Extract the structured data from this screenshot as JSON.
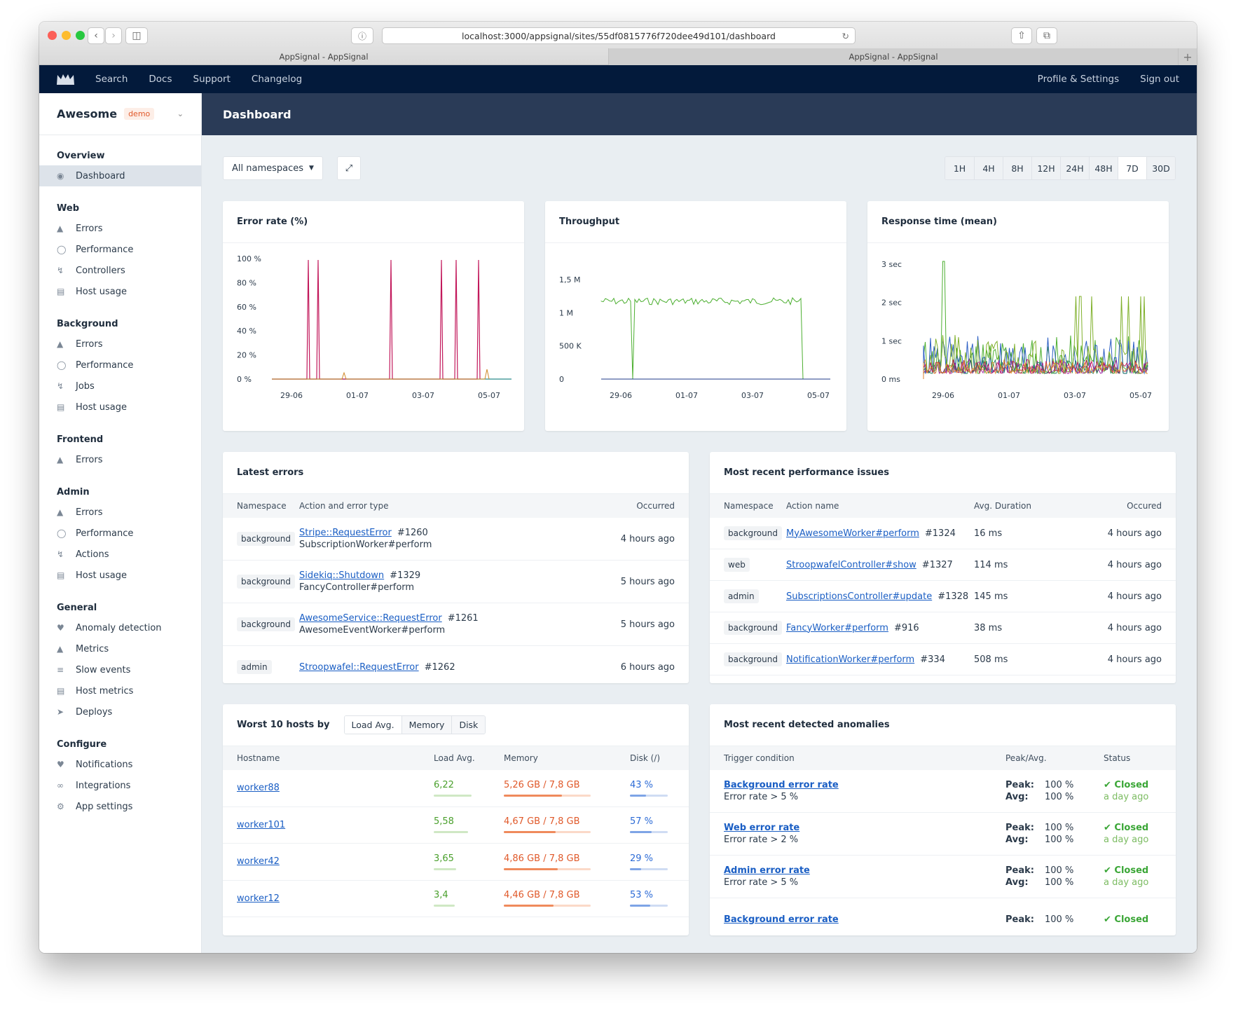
{
  "browser": {
    "url": "localhost:3000/appsignal/sites/55df0815776f720dee49d101/dashboard",
    "tabs": [
      "AppSignal - AppSignal",
      "AppSignal - AppSignal"
    ]
  },
  "topnav": {
    "items": [
      "Search",
      "Docs",
      "Support",
      "Changelog"
    ],
    "right": [
      "Profile & Settings",
      "Sign out"
    ]
  },
  "app": {
    "name": "Awesome",
    "env": "demo"
  },
  "sidebar": {
    "groups": [
      {
        "title": "Overview",
        "items": [
          {
            "label": "Dashboard",
            "icon": "dashboard-icon"
          }
        ]
      },
      {
        "title": "Web",
        "items": [
          {
            "label": "Errors",
            "icon": "warning-icon"
          },
          {
            "label": "Performance",
            "icon": "clock-icon"
          },
          {
            "label": "Controllers",
            "icon": "bolt-icon"
          },
          {
            "label": "Host usage",
            "icon": "server-icon"
          }
        ]
      },
      {
        "title": "Background",
        "items": [
          {
            "label": "Errors",
            "icon": "warning-icon"
          },
          {
            "label": "Performance",
            "icon": "clock-icon"
          },
          {
            "label": "Jobs",
            "icon": "bolt-icon"
          },
          {
            "label": "Host usage",
            "icon": "server-icon"
          }
        ]
      },
      {
        "title": "Frontend",
        "items": [
          {
            "label": "Errors",
            "icon": "warning-icon"
          }
        ]
      },
      {
        "title": "Admin",
        "items": [
          {
            "label": "Errors",
            "icon": "warning-icon"
          },
          {
            "label": "Performance",
            "icon": "clock-icon"
          },
          {
            "label": "Actions",
            "icon": "bolt-icon"
          },
          {
            "label": "Host usage",
            "icon": "server-icon"
          }
        ]
      },
      {
        "title": "General",
        "items": [
          {
            "label": "Anomaly detection",
            "icon": "bell-icon"
          },
          {
            "label": "Metrics",
            "icon": "area-chart-icon"
          },
          {
            "label": "Slow events",
            "icon": "list-icon"
          },
          {
            "label": "Host metrics",
            "icon": "server-icon"
          },
          {
            "label": "Deploys",
            "icon": "rocket-icon"
          }
        ]
      },
      {
        "title": "Configure",
        "items": [
          {
            "label": "Notifications",
            "icon": "bell-icon"
          },
          {
            "label": "Integrations",
            "icon": "link-icon"
          },
          {
            "label": "App settings",
            "icon": "gear-icon"
          }
        ]
      }
    ]
  },
  "page": {
    "title": "Dashboard"
  },
  "toolbar": {
    "namespace": "All namespaces",
    "ranges": [
      "1H",
      "4H",
      "8H",
      "12H",
      "24H",
      "48H",
      "7D",
      "30D"
    ],
    "selected_range": "7D"
  },
  "charts": [
    {
      "title": "Error rate (%)",
      "yticks": [
        "100 %",
        "80 %",
        "60 %",
        "40 %",
        "20 %",
        "0 %"
      ],
      "xticks": [
        "29-06",
        "01-07",
        "03-07",
        "05-07"
      ]
    },
    {
      "title": "Throughput",
      "yticks": [
        "1,5 M",
        "1 M",
        "500 K",
        "0"
      ],
      "xticks": [
        "29-06",
        "01-07",
        "03-07",
        "05-07"
      ]
    },
    {
      "title": "Response time (mean)",
      "yticks": [
        "3 sec",
        "2 sec",
        "1 sec",
        "0 ms"
      ],
      "xticks": [
        "29-06",
        "01-07",
        "03-07",
        "05-07"
      ]
    }
  ],
  "latest_errors": {
    "title": "Latest errors",
    "headers": [
      "Namespace",
      "Action and error type",
      "Occurred"
    ],
    "rows": [
      {
        "ns": "background",
        "error": "Stripe::RequestError",
        "num": "#1260",
        "action": "SubscriptionWorker#perform",
        "when": "4 hours ago"
      },
      {
        "ns": "background",
        "error": "Sidekiq::Shutdown",
        "num": "#1329",
        "action": "FancyController#perform",
        "when": "5 hours ago"
      },
      {
        "ns": "background",
        "error": "AwesomeService::RequestError",
        "num": "#1261",
        "action": "AwesomeEventWorker#perform",
        "when": "5 hours ago"
      },
      {
        "ns": "admin",
        "error": "Stroopwafel::RequestError",
        "num": "#1262",
        "action": "",
        "when": "6 hours ago"
      }
    ]
  },
  "perf_issues": {
    "title": "Most recent performance issues",
    "headers": [
      "Namespace",
      "Action name",
      "Avg. Duration",
      "Occured"
    ],
    "rows": [
      {
        "ns": "background",
        "action": "MyAwesomeWorker#perform",
        "num": "#1324",
        "dur": "16 ms",
        "when": "4 hours ago"
      },
      {
        "ns": "web",
        "action": "StroopwafelController#show",
        "num": "#1327",
        "dur": "114 ms",
        "when": "4 hours ago"
      },
      {
        "ns": "admin",
        "action": "SubscriptionsController#update",
        "num": "#1328",
        "dur": "145 ms",
        "when": "4 hours ago"
      },
      {
        "ns": "background",
        "action": "FancyWorker#perform",
        "num": "#916",
        "dur": "38 ms",
        "when": "4 hours ago"
      },
      {
        "ns": "background",
        "action": "NotificationWorker#perform",
        "num": "#334",
        "dur": "508 ms",
        "when": "4 hours ago"
      }
    ]
  },
  "hosts": {
    "title": "Worst 10 hosts by",
    "tabs": [
      "Load Avg.",
      "Memory",
      "Disk"
    ],
    "headers": [
      "Hostname",
      "Load Avg.",
      "Memory",
      "Disk (/)"
    ],
    "rows": [
      {
        "host": "worker88",
        "load": "6,22",
        "load_frac": 1.0,
        "mem": "5,26 GB / 7,8 GB",
        "mem_frac": 0.67,
        "disk": "43 %",
        "disk_frac": 0.43
      },
      {
        "host": "worker101",
        "load": "5,58",
        "load_frac": 0.9,
        "mem": "4,67 GB / 7,8 GB",
        "mem_frac": 0.6,
        "disk": "57 %",
        "disk_frac": 0.57
      },
      {
        "host": "worker42",
        "load": "3,65",
        "load_frac": 0.59,
        "mem": "4,86 GB / 7,8 GB",
        "mem_frac": 0.62,
        "disk": "29 %",
        "disk_frac": 0.29
      },
      {
        "host": "worker12",
        "load": "3,4",
        "load_frac": 0.55,
        "mem": "4,46 GB / 7,8 GB",
        "mem_frac": 0.57,
        "disk": "53 %",
        "disk_frac": 0.53
      }
    ]
  },
  "anomalies": {
    "title": "Most recent detected anomalies",
    "headers": [
      "Trigger condition",
      "Peak/Avg.",
      "Status"
    ],
    "peak_label": "Peak:",
    "avg_label": "Avg:",
    "rows": [
      {
        "name": "Background error rate",
        "cond": "Error rate > 5 %",
        "peak": "100 %",
        "avg": "100 %",
        "status": "Closed",
        "when": "a day ago"
      },
      {
        "name": "Web error rate",
        "cond": "Error rate > 2 %",
        "peak": "100 %",
        "avg": "100 %",
        "status": "Closed",
        "when": "a day ago"
      },
      {
        "name": "Admin error rate",
        "cond": "Error rate > 5 %",
        "peak": "100 %",
        "avg": "100 %",
        "status": "Closed",
        "when": "a day ago"
      },
      {
        "name": "Background error rate",
        "cond": "",
        "peak": "100 %",
        "avg": "",
        "status": "Closed",
        "when": ""
      }
    ]
  },
  "colors": {
    "nav": "#031a3b",
    "header": "#2a3b57",
    "link": "#1a5ec4",
    "green": "#4aa02c",
    "orange": "#e0592a",
    "blue": "#2c6bd6"
  }
}
